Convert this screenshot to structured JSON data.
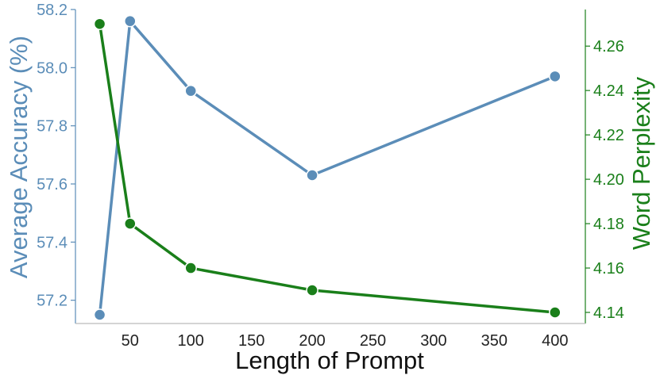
{
  "chart_data": {
    "type": "line",
    "xlabel": "Length of Prompt",
    "ylabel_left": "Average Accuracy (%)",
    "ylabel_right": "Word Perplexity",
    "x_ticks": [
      50,
      100,
      150,
      200,
      250,
      300,
      350,
      400
    ],
    "xlim": [
      5,
      425
    ],
    "y_left_ticks": [
      "57.2",
      "57.4",
      "57.6",
      "57.8",
      "58.0",
      "58.2"
    ],
    "y_left_lim": [
      57.12,
      58.2
    ],
    "y_right_ticks": [
      "4.14",
      "4.16",
      "4.18",
      "4.20",
      "4.22",
      "4.24",
      "4.26"
    ],
    "y_right_lim": [
      4.135,
      4.2765
    ],
    "grid": false,
    "series": [
      {
        "name": "Average Accuracy (%)",
        "axis": "left",
        "color": "#5b8db8",
        "x": [
          25,
          50,
          100,
          200,
          400
        ],
        "y": [
          57.15,
          58.16,
          57.92,
          57.63,
          57.97
        ]
      },
      {
        "name": "Word Perplexity",
        "axis": "right",
        "color": "#1a7f1a",
        "x": [
          25,
          50,
          100,
          200,
          400
        ],
        "y": [
          4.27,
          4.18,
          4.16,
          4.15,
          4.14
        ]
      }
    ]
  }
}
